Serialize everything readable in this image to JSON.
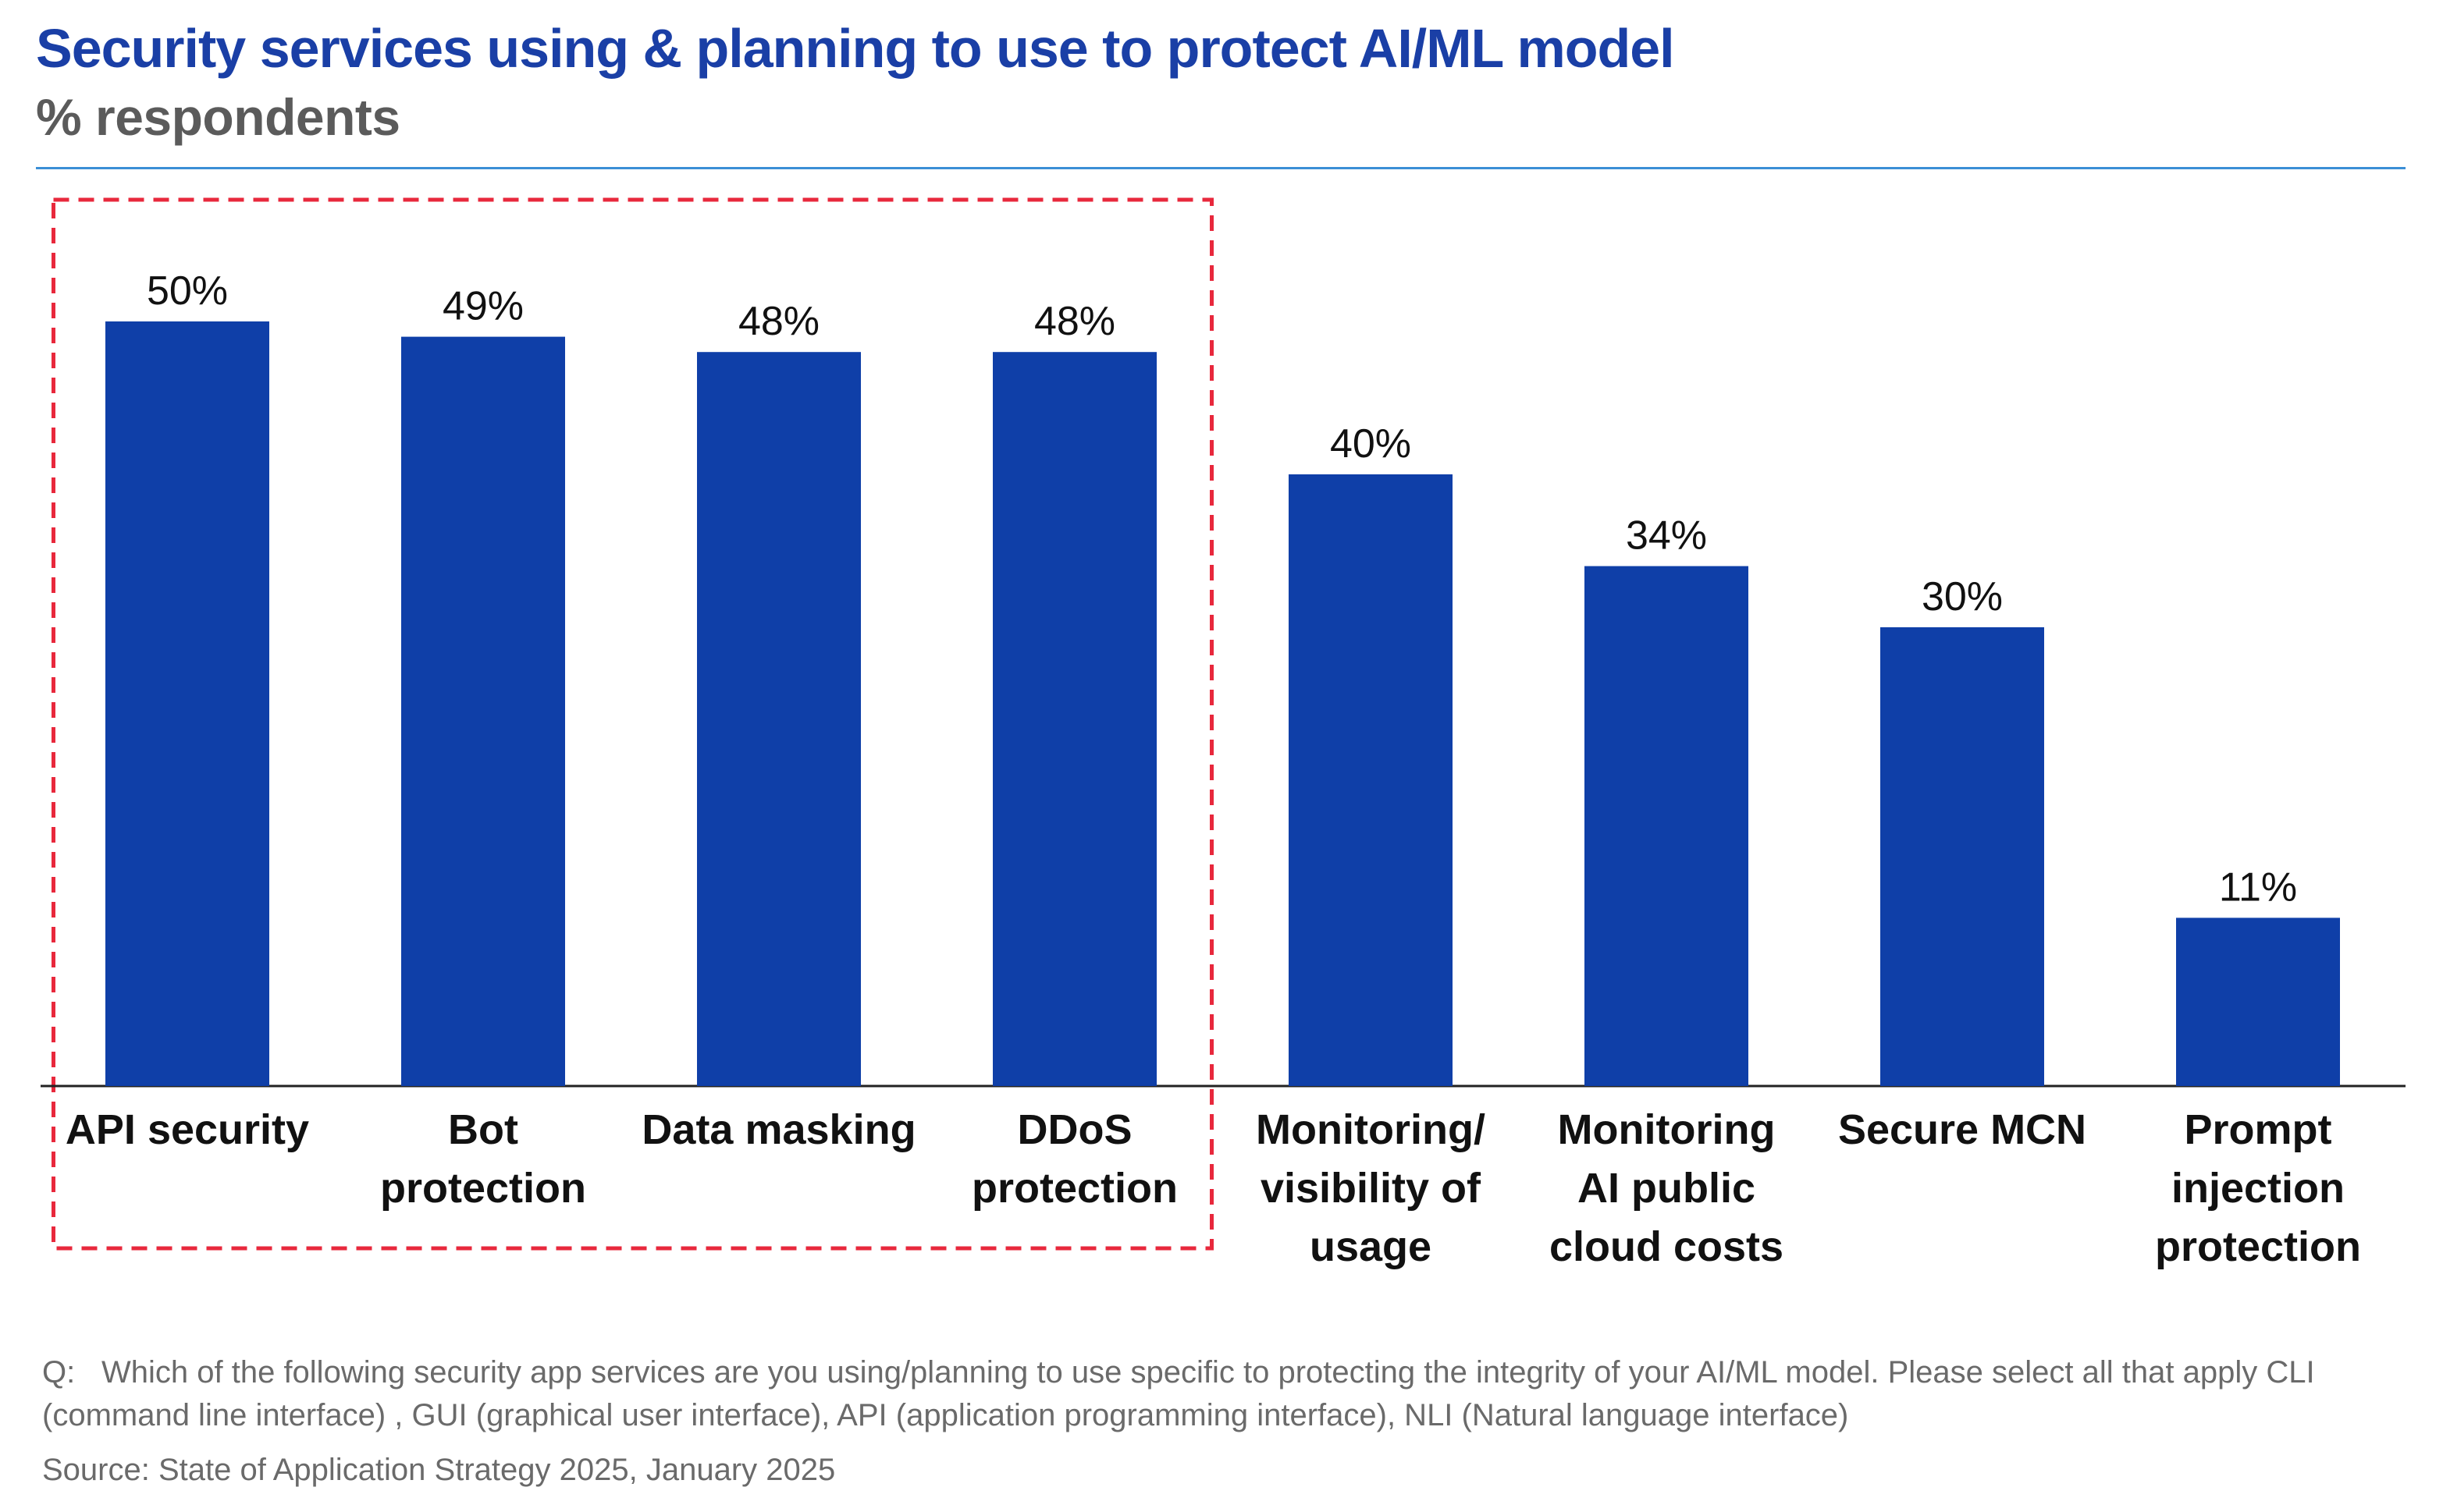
{
  "title": "Security services using & planning to use to protect AI/ML model",
  "subtitle": "% respondents",
  "colors": {
    "bar": "#0f3fa8",
    "title": "#1a3fa6",
    "highlight_box": "#e8283c",
    "rule": "#3b8fd6"
  },
  "chart_data": {
    "type": "bar",
    "categories": [
      [
        "API security"
      ],
      [
        "Bot",
        "protection"
      ],
      [
        "Data masking"
      ],
      [
        "DDoS",
        "protection"
      ],
      [
        "Monitoring/",
        "visibility of",
        "usage"
      ],
      [
        "Monitoring",
        "AI public",
        "cloud costs"
      ],
      [
        "Secure MCN"
      ],
      [
        "Prompt",
        "injection",
        "protection"
      ]
    ],
    "values": [
      50,
      49,
      48,
      48,
      40,
      34,
      30,
      11
    ],
    "value_labels": [
      "50%",
      "49%",
      "48%",
      "48%",
      "40%",
      "34%",
      "30%",
      "11%"
    ],
    "ylim": [
      0,
      60
    ],
    "grid": false,
    "highlighted_categories": [
      0,
      1,
      2,
      3
    ]
  },
  "footer": {
    "question_label": "Q:",
    "question": "Which of the following security app services are you using/planning to use specific to protecting the integrity of your AI/ML model. Please select all that apply CLI (command line interface) , GUI (graphical user interface), API (application programming interface), NLI (Natural language interface)",
    "source": "Source: State of Application Strategy 2025, January 2025"
  }
}
